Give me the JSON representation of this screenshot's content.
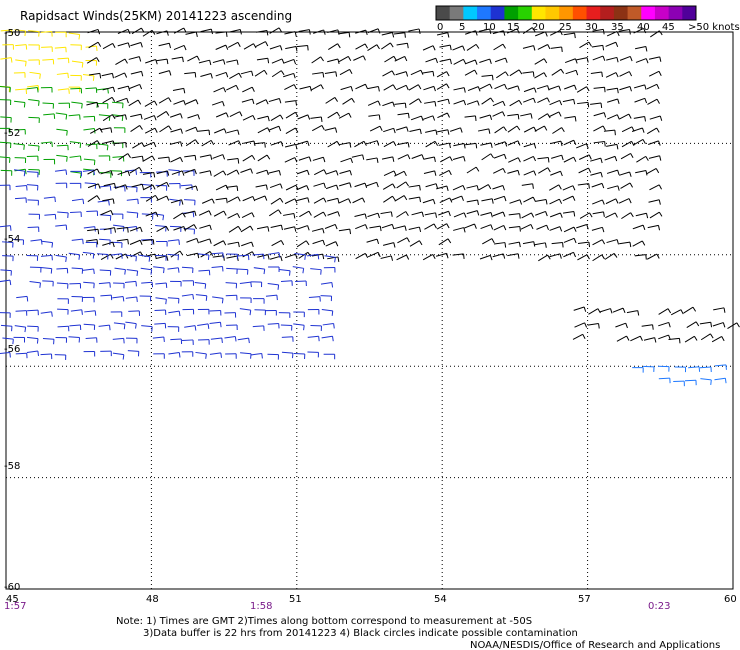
{
  "title": "Rapidsact Winds(25KM) 20141223 ascending",
  "legend": {
    "unit_label": ">50 knots",
    "tick_labels": [
      "0",
      "5",
      "10",
      "15",
      "20",
      "25",
      "30",
      "35",
      "40",
      "45"
    ],
    "colors": [
      "#4a4a4a",
      "#7a7a7a",
      "#00c8ff",
      "#1e78ff",
      "#1e32d2",
      "#00a000",
      "#28d200",
      "#ffe600",
      "#ffc800",
      "#ff9600",
      "#ff5000",
      "#e61e1e",
      "#b41e1e",
      "#8c3214",
      "#c05a28",
      "#ff00ff",
      "#c800c8",
      "#8c00b4",
      "#50009a"
    ]
  },
  "chart_data": {
    "type": "scatter",
    "title": "Rapidsact Winds(25KM) 20141223 ascending",
    "x_ticks": [
      "45",
      "48",
      "51",
      "54",
      "57",
      "60"
    ],
    "y_ticks": [
      "-50",
      "-52",
      "-54",
      "-56",
      "-58",
      "-60"
    ],
    "xlim": [
      45,
      60
    ],
    "ylim": [
      -60,
      -50
    ],
    "grid": true,
    "time_labels": [
      {
        "x": 45,
        "label": "1:57"
      },
      {
        "x": 50.2,
        "label": "1:58"
      },
      {
        "x": 58.5,
        "label": "0:23"
      }
    ],
    "wind_regions": [
      {
        "name": "yellow",
        "color": "#ffe600",
        "lon": [
          45,
          46.8
        ],
        "lat": [
          -51.2,
          -50
        ]
      },
      {
        "name": "green-west",
        "color": "#00a000",
        "lon": [
          45,
          47.4
        ],
        "lat": [
          -52.6,
          -51
        ]
      },
      {
        "name": "blue-west",
        "color": "#1e32d2",
        "lon": [
          45,
          48.8
        ],
        "lat": [
          -54,
          -52.5
        ]
      },
      {
        "name": "black-swath-north",
        "color": "#000000",
        "lon": [
          46.8,
          58.5
        ],
        "lat": [
          -54.2,
          -50
        ]
      },
      {
        "name": "blue-band",
        "color": "#1e32d2",
        "lon": [
          45,
          51.8
        ],
        "lat": [
          -55.8,
          -54
        ]
      },
      {
        "name": "black-swath-east",
        "color": "#000000",
        "lon": [
          56.8,
          60
        ],
        "lat": [
          -55.7,
          -55
        ]
      },
      {
        "name": "blue-east",
        "color": "#1e78ff",
        "lon": [
          58,
          60
        ],
        "lat": [
          -56.4,
          -56
        ]
      }
    ]
  },
  "footer": {
    "note_line1": "Note: 1) Times are GMT 2)Times along bottom correspond to measurement at -50S",
    "note_line2": "3)Data buffer is 22 hrs from 20141223 4) Black circles indicate possible contamination",
    "credit": "NOAA/NESDIS/Office of Research and Applications"
  }
}
